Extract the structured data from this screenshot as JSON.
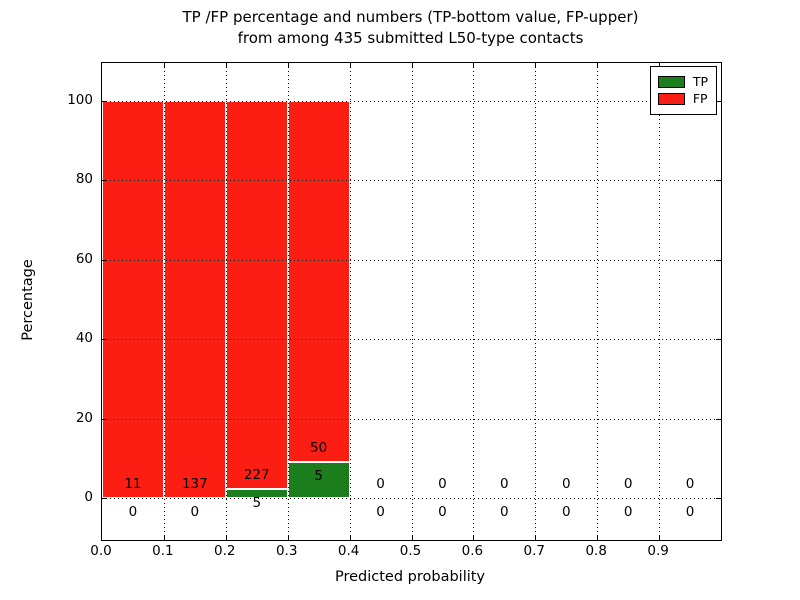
{
  "title": {
    "line1": "TP /FP percentage and numbers (TP-bottom value, FP-upper)",
    "line2": "from among 435 submitted L50-type contacts"
  },
  "axes": {
    "xlabel": "Predicted probability",
    "ylabel": "Percentage",
    "x_tick_labels": [
      "0.0",
      "0.1",
      "0.2",
      "0.3",
      "0.4",
      "0.5",
      "0.6",
      "0.7",
      "0.8",
      "0.9"
    ],
    "x_tick_values": [
      0.0,
      0.1,
      0.2,
      0.3,
      0.4,
      0.5,
      0.6,
      0.7,
      0.8,
      0.9
    ],
    "y_tick_labels": [
      "0",
      "20",
      "40",
      "60",
      "80",
      "100"
    ],
    "y_tick_values": [
      0,
      20,
      40,
      60,
      80,
      100
    ],
    "xlim": [
      0.0,
      1.0
    ],
    "ylim": [
      -10,
      110
    ],
    "grid_style": "dotted"
  },
  "legend": {
    "position": "upper right",
    "items": [
      {
        "label": "TP",
        "color": "#1c7d1c"
      },
      {
        "label": "FP",
        "color": "#fc1d13"
      }
    ]
  },
  "colors": {
    "tp_green": "#1c7d1c",
    "fp_red": "#fc1d13",
    "background": "#ffffff",
    "axis": "#000000"
  },
  "chart_data": {
    "type": "bar",
    "stacked": true,
    "title": "TP /FP percentage and numbers (TP-bottom value, FP-upper) from among 435 submitted L50-type contacts",
    "xlabel": "Predicted probability",
    "ylabel": "Percentage",
    "xlim": [
      0.0,
      1.0
    ],
    "ylim": [
      -10,
      110
    ],
    "grid": "dotted, on top of bars",
    "legend_position": "upper right",
    "total_contacts": 435,
    "bin_starts": [
      0.0,
      0.1,
      0.2,
      0.3,
      0.4,
      0.5,
      0.6,
      0.7,
      0.8,
      0.9
    ],
    "bin_width": 0.1,
    "series": [
      {
        "name": "TP",
        "color": "#1c7d1c",
        "counts": [
          0,
          0,
          5,
          5,
          0,
          0,
          0,
          0,
          0,
          0
        ],
        "percent": [
          0,
          0,
          2.2,
          9.1,
          0,
          0,
          0,
          0,
          0,
          0
        ]
      },
      {
        "name": "FP",
        "color": "#fc1d13",
        "counts": [
          11,
          137,
          227,
          50,
          0,
          0,
          0,
          0,
          0,
          0
        ],
        "percent": [
          100,
          100,
          97.8,
          90.9,
          0,
          0,
          0,
          0,
          0,
          0
        ]
      }
    ]
  }
}
